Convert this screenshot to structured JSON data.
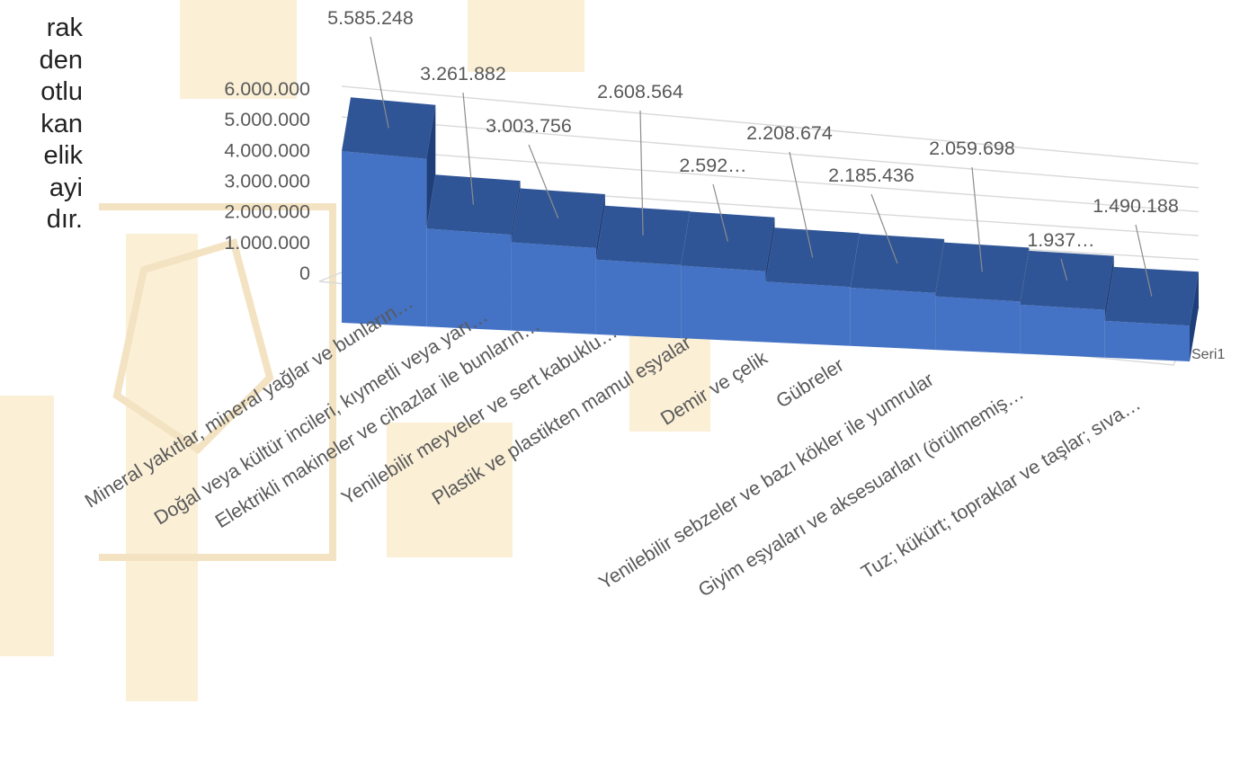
{
  "side_text": [
    "rak",
    "den",
    "otlu",
    "kan",
    "elik",
    "ayi",
    "dır."
  ],
  "colors": {
    "bar_front": "#4472C4",
    "bar_top": "#2F5597",
    "bar_side": "#1F3F7A",
    "grid": "#D9D9D9",
    "label": "#595959",
    "watermark": "#FBEFD6"
  },
  "chart_data": {
    "type": "bar",
    "view": "3d",
    "categories": [
      "Mineral yakıtlar, mineral yağlar ve bunların…",
      "Doğal veya kültür incileri, kıymetli veya yarı…",
      "Elektrikli makineler ve cihazlar ile bunların…",
      "Yenilebilir meyveler ve sert kabuklu…",
      "Plastik ve plastikten mamul eşyalar",
      "Demir ve çelik",
      "Gübreler",
      "Yenilebilir sebzeler ve bazı kökler ile yumrular",
      "Giyim eşyaları ve aksesuarları (örülmemiş…",
      "Tuz; kükürt; topraklar ve taşlar; sıva…"
    ],
    "series": [
      {
        "name": "Seri1",
        "values": [
          5585248,
          3261882,
          3003756,
          2608564,
          2592000,
          2208674,
          2185436,
          2059698,
          1937000,
          1490188
        ]
      }
    ],
    "data_labels": [
      "5.585.248",
      "3.261.882",
      "3.003.756",
      "2.608.564",
      "2.592…",
      "2.208.674",
      "2.185.436",
      "2.059.698",
      "1.937…",
      "1.490.188"
    ],
    "y_ticks": [
      "0",
      "1.000.000",
      "2.000.000",
      "3.000.000",
      "4.000.000",
      "5.000.000",
      "6.000.000"
    ],
    "ylim": [
      0,
      6000000
    ],
    "grid": true
  }
}
